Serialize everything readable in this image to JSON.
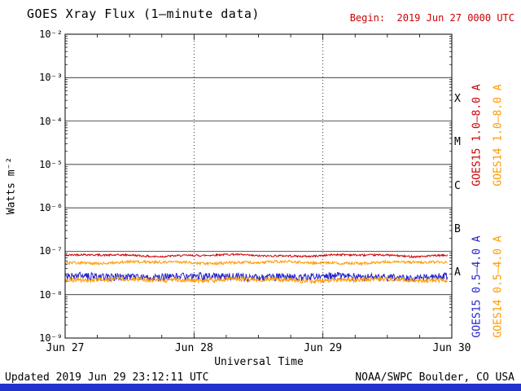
{
  "header": {
    "title": "GOES Xray Flux (1–minute data)",
    "begin_label": "Begin:  2019 Jun 27 0000 UTC",
    "begin_color": "#cc0000"
  },
  "chart_data": {
    "type": "line",
    "title": "GOES Xray Flux (1-minute data)",
    "xlabel": "Universal Time",
    "ylabel": "Watts m⁻²",
    "x_tick_labels": [
      "Jun 27",
      "Jun 28",
      "Jun 29",
      "Jun 30"
    ],
    "y_tick_labels": [
      "10⁻²",
      "10⁻³",
      "10⁻⁴",
      "10⁻⁵",
      "10⁻⁶",
      "10⁻⁷",
      "10⁻⁸",
      "10⁻⁹"
    ],
    "ylim_log10": [
      -9,
      -2
    ],
    "x_span_days": 3,
    "data_end_day": 2.966,
    "v_gridline_days": [
      1,
      2
    ],
    "grid": {
      "h_solid_at_decades": true,
      "v_dotted_at_days": true
    },
    "legend_position": "right-rotated",
    "flare_classes": [
      {
        "label": "X",
        "log_center": -3.5
      },
      {
        "label": "M",
        "log_center": -4.5
      },
      {
        "label": "C",
        "log_center": -5.5
      },
      {
        "label": "B",
        "log_center": -6.5
      },
      {
        "label": "A",
        "log_center": -7.5
      }
    ],
    "series": [
      {
        "name": "GOES15 1.0–8.0 A",
        "satellite": "GOES15",
        "band": "1.0-8.0 A",
        "color": "#cc0000",
        "avg_flux": 8e-08,
        "noise_frac": 0.05
      },
      {
        "name": "GOES14 1.0–8.0 A",
        "satellite": "GOES14",
        "band": "1.0-8.0 A",
        "color": "#ff9900",
        "avg_flux": 5.5e-08,
        "noise_frac": 0.07
      },
      {
        "name": "GOES15 0.5–4.0 A",
        "satellite": "GOES15",
        "band": "0.5-4.0 A",
        "color": "#2222cc",
        "avg_flux": 2.6e-08,
        "noise_frac": 0.2
      },
      {
        "name": "GOES14 0.5–4.0 A",
        "satellite": "GOES14",
        "band": "0.5-4.0 A",
        "color": "#ff9900",
        "avg_flux": 2.2e-08,
        "noise_frac": 0.12
      }
    ]
  },
  "footer": {
    "updated": "Updated 2019 Jun 29 23:12:11 UTC",
    "credit": "NOAA/SWPC Boulder, CO USA",
    "bar_color": "#2233cc"
  }
}
